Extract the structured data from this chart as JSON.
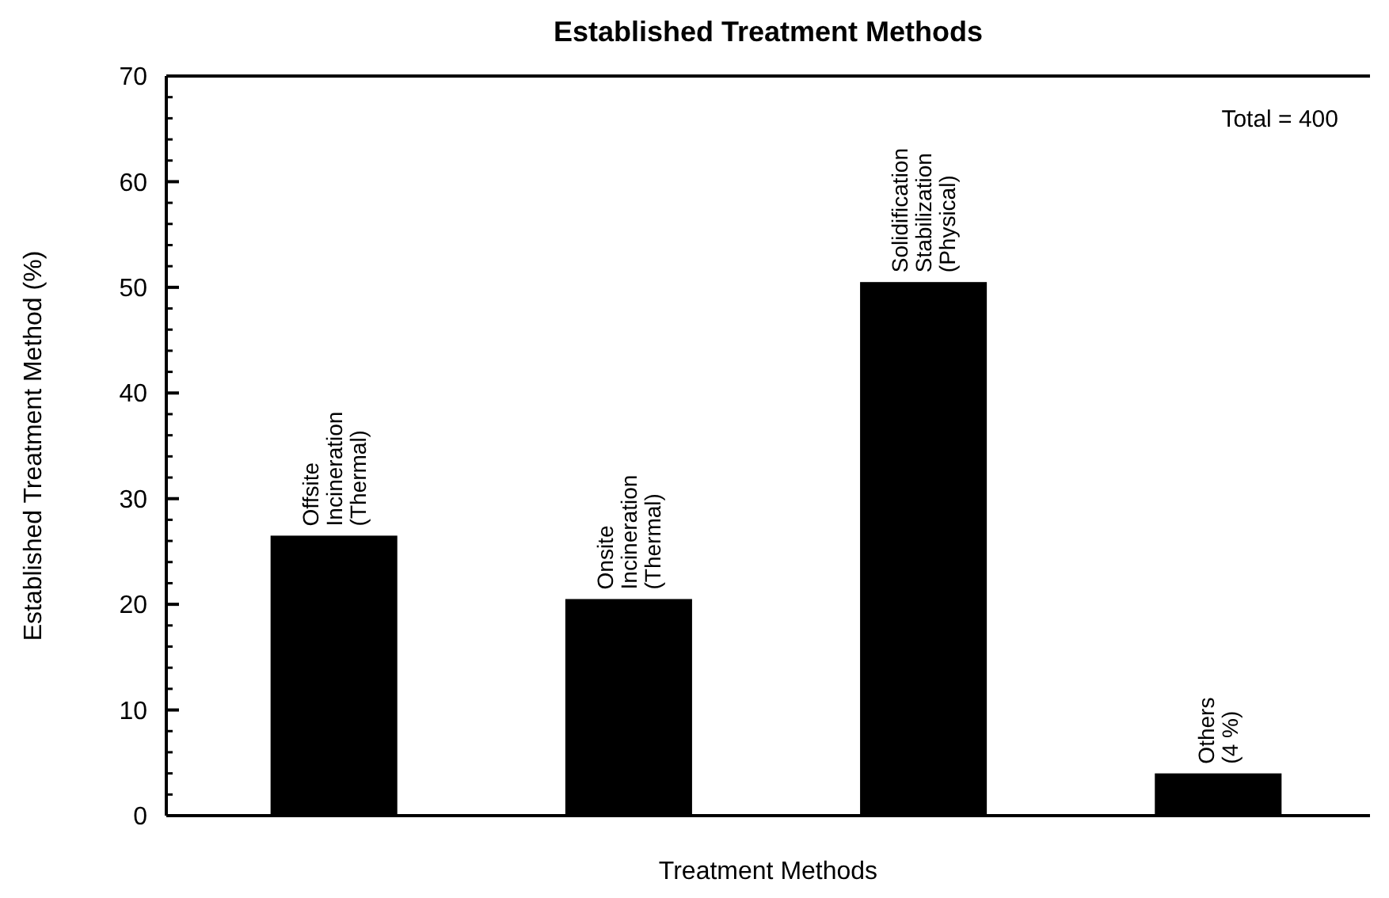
{
  "chart_data": {
    "type": "bar",
    "title": "Established Treatment Methods",
    "xlabel": "Treatment Methods",
    "ylabel": "Established Treatment Method (%)",
    "categories": [
      "Offsite\nIncineration\n(Thermal)",
      "Onsite\nIncineration\n(Thermal)",
      "Solidification\nStabilization\n(Physical)",
      "Others\n(4 %)"
    ],
    "values": [
      26.5,
      20.5,
      50.5,
      4
    ],
    "color": "#000000",
    "ylim": [
      0,
      70
    ],
    "yticks": [
      0,
      10,
      20,
      30,
      40,
      50,
      60,
      70
    ],
    "grid": false,
    "annotations": [
      "Total = 400"
    ]
  }
}
